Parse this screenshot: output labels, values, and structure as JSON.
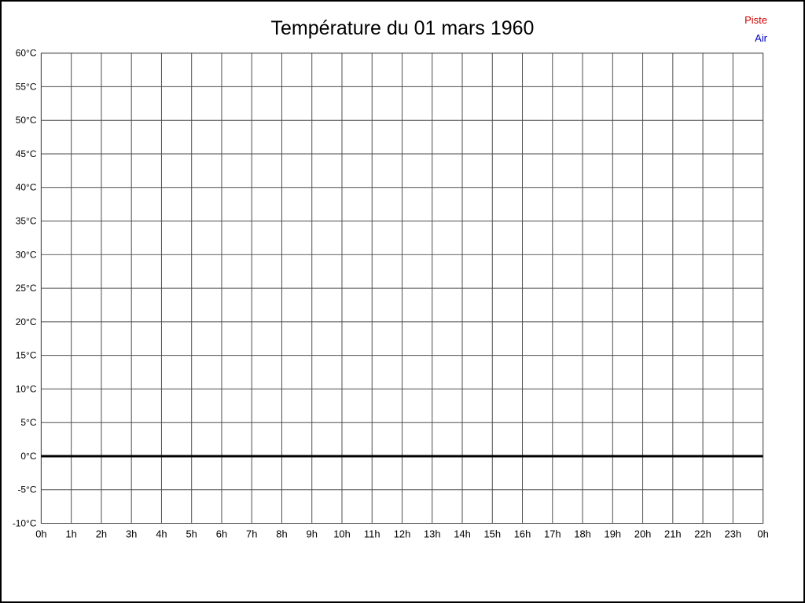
{
  "title": "Température du 01 mars 1960",
  "legend": [
    {
      "label": "Piste",
      "color": "#cc0000"
    },
    {
      "label": "Air",
      "color": "#0000cc"
    }
  ],
  "chart_data": {
    "type": "line",
    "title": "Température du 01 mars 1960",
    "xlabel": "",
    "ylabel": "",
    "x_tick_labels": [
      "0h",
      "1h",
      "2h",
      "3h",
      "4h",
      "5h",
      "6h",
      "7h",
      "8h",
      "9h",
      "10h",
      "11h",
      "12h",
      "13h",
      "14h",
      "15h",
      "16h",
      "17h",
      "18h",
      "19h",
      "20h",
      "21h",
      "22h",
      "23h",
      "0h"
    ],
    "y_tick_labels": [
      "60°C",
      "55°C",
      "50°C",
      "45°C",
      "40°C",
      "35°C",
      "30°C",
      "25°C",
      "20°C",
      "15°C",
      "10°C",
      "5°C",
      "0°C",
      "-5°C",
      "-10°C"
    ],
    "xlim": [
      0,
      24
    ],
    "ylim": [
      -10,
      60
    ],
    "y_tick_step": 5,
    "grid": true,
    "grid_color": "#4d4d4d",
    "legend_position": "top-right",
    "series": [
      {
        "name": "Piste",
        "color": "#cc0000",
        "values": []
      },
      {
        "name": "Air",
        "color": "#0000cc",
        "values": []
      }
    ],
    "zero_line": {
      "y": 0,
      "color": "#000000",
      "width": 3
    }
  }
}
